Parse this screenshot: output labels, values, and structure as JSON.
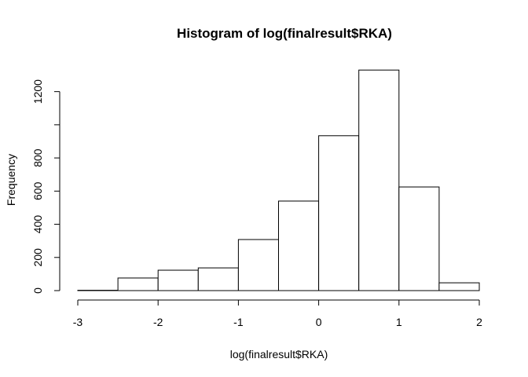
{
  "chart_data": {
    "type": "histogram",
    "title": "Histogram of log(finalresult$RKA)",
    "x_label": "log(finalresult$RKA)",
    "y_label": "Frequency",
    "bins": [
      -3,
      -2.5,
      -2,
      -1.5,
      -1,
      -0.5,
      0,
      0.5,
      1,
      1.5,
      2
    ],
    "values": [
      2,
      76,
      123,
      137,
      308,
      540,
      934,
      1330,
      625,
      47
    ],
    "color": "#ffffff",
    "xlim": [
      -3,
      2
    ],
    "xticks": [
      -3,
      -2,
      -1,
      0,
      1,
      2
    ],
    "ylim": [
      0,
      1383
    ],
    "yticks": [
      0,
      200,
      400,
      600,
      800,
      {
        "value": 1000,
        "label": null
      },
      1200
    ],
    "grid": false
  }
}
